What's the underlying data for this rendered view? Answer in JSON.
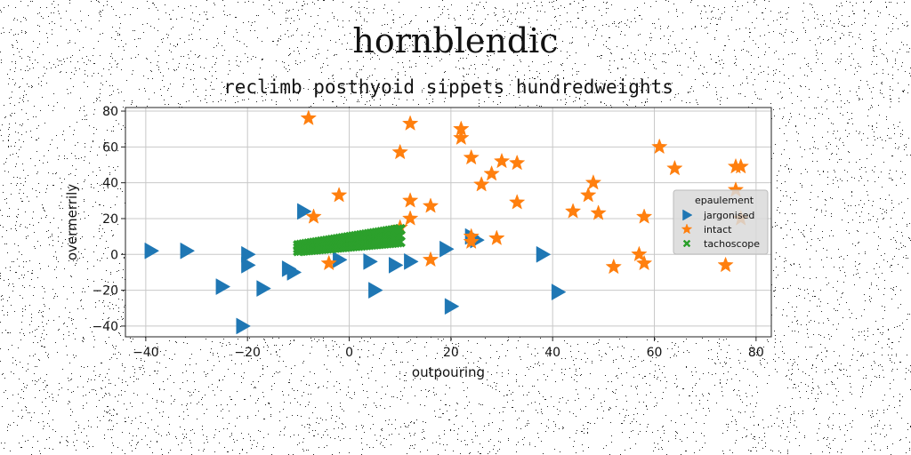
{
  "figure": {
    "suptitle": "hornblendic"
  },
  "chart_data": {
    "type": "scatter",
    "title": "reclimb posthyoid sippets hundredweights",
    "xlabel": "outpouring",
    "ylabel": "overmerrily",
    "xlim": [
      -44,
      83
    ],
    "ylim": [
      -46,
      82
    ],
    "xticks": [
      -40,
      -20,
      0,
      20,
      40,
      60,
      80
    ],
    "yticks": [
      -40,
      -20,
      0,
      20,
      40,
      60,
      80
    ],
    "grid": true,
    "legend": {
      "placement": "right",
      "title": "epaulement",
      "entries": [
        "jargonised",
        "intact",
        "tachoscope"
      ]
    },
    "series": [
      {
        "name": "jargonised",
        "marker": "triangle-right",
        "color": "#1f77b4",
        "points": [
          [
            -39,
            2
          ],
          [
            -32,
            2
          ],
          [
            -20,
            0
          ],
          [
            -20,
            -6
          ],
          [
            -25,
            -18
          ],
          [
            -17,
            -19
          ],
          [
            -21,
            -40
          ],
          [
            -12,
            -8
          ],
          [
            -11,
            -10
          ],
          [
            -9,
            24
          ],
          [
            -2,
            -3
          ],
          [
            4,
            -4
          ],
          [
            9,
            -6
          ],
          [
            12,
            -4
          ],
          [
            5,
            -20
          ],
          [
            19,
            3
          ],
          [
            24,
            10
          ],
          [
            20,
            -29
          ],
          [
            38,
            0
          ],
          [
            41,
            -21
          ],
          [
            25,
            8
          ]
        ]
      },
      {
        "name": "intact",
        "marker": "star",
        "color": "#ff7f0e",
        "points": [
          [
            -8,
            76
          ],
          [
            -7,
            21
          ],
          [
            -2,
            33
          ],
          [
            -4,
            -5
          ],
          [
            10,
            57
          ],
          [
            12,
            73
          ],
          [
            12,
            30
          ],
          [
            12,
            20
          ],
          [
            10,
            15
          ],
          [
            16,
            27
          ],
          [
            16,
            -3
          ],
          [
            22,
            65
          ],
          [
            22,
            70
          ],
          [
            24,
            54
          ],
          [
            24,
            10
          ],
          [
            24,
            7
          ],
          [
            26,
            39
          ],
          [
            28,
            45
          ],
          [
            29,
            9
          ],
          [
            30,
            52
          ],
          [
            33,
            51
          ],
          [
            33,
            29
          ],
          [
            44,
            24
          ],
          [
            47,
            33
          ],
          [
            48,
            40
          ],
          [
            49,
            23
          ],
          [
            52,
            -7
          ],
          [
            57,
            0
          ],
          [
            58,
            21
          ],
          [
            58,
            -5
          ],
          [
            61,
            60
          ],
          [
            64,
            48
          ],
          [
            74,
            -6
          ],
          [
            76,
            36
          ],
          [
            76,
            49
          ],
          [
            77,
            49
          ],
          [
            77,
            20
          ]
        ]
      },
      {
        "name": "tachoscope",
        "marker": "x",
        "color": "#2ca02c",
        "line": {
          "x_start": -10,
          "x_end": 10,
          "count": 40,
          "y_start_low": 2,
          "y_start_high": 5,
          "y_end_low": 7,
          "y_end_high": 14
        }
      }
    ]
  },
  "style": {
    "grid_color": "#c8c8c8",
    "axis_color": "#222222",
    "legend_bg": "#d9d9d9"
  }
}
